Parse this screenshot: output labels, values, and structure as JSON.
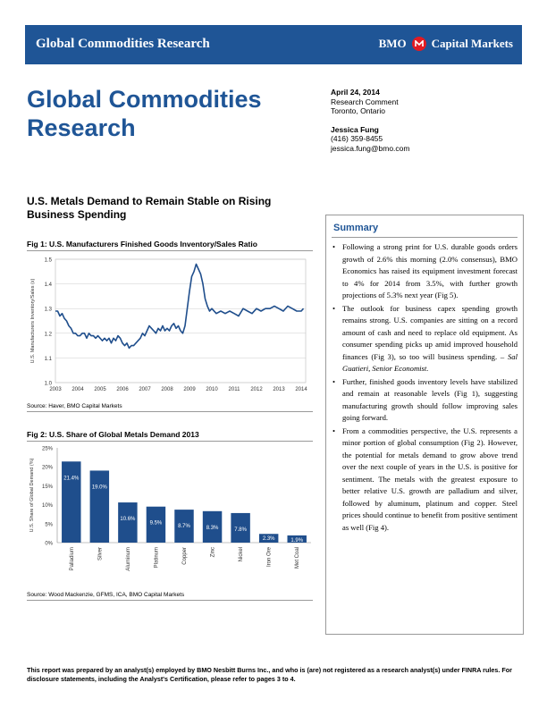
{
  "header": {
    "title": "Global Commodities Research",
    "brand_prefix": "BMO",
    "brand_suffix": "Capital Markets",
    "brand_color": "#1f5596",
    "logo_color": "#e21b23"
  },
  "main_title": "Global Commodities Research",
  "meta": {
    "date": "April 24, 2014",
    "doc_type": "Research Comment",
    "location": "Toronto, Ontario",
    "author_name": "Jessica Fung",
    "author_phone": "(416) 359-8455",
    "author_email": "jessica.fung@bmo.com"
  },
  "headline": "U.S. Metals Demand to Remain Stable on Rising Business Spending",
  "fig1": {
    "title": "Fig 1: U.S. Manufacturers Finished Goods Inventory/Sales Ratio",
    "source": "Source: Haver, BMO Capital Markets"
  },
  "fig2": {
    "title": "Fig 2: U.S. Share of Global Metals Demand 2013",
    "source": "Source: Wood Mackenzie, GFMS, ICA, BMO Capital Markets"
  },
  "chart_data": [
    {
      "type": "line",
      "title": "Fig 1: U.S. Manufacturers Finished Goods Inventory/Sales Ratio",
      "ylabel": "U.S. Manufacturers Inventory/Sales (x)",
      "xlabel": "",
      "ylim": [
        1.0,
        1.5
      ],
      "yticks": [
        "1.0",
        "1.1",
        "1.2",
        "1.3",
        "1.4",
        "1.5"
      ],
      "xlim": [
        2003,
        2014.2
      ],
      "xticks": [
        "2003",
        "2004",
        "2005",
        "2006",
        "2007",
        "2008",
        "2009",
        "2010",
        "2011",
        "2012",
        "2013",
        "2014"
      ],
      "grid": true,
      "color": "#1f4e8c",
      "series": [
        {
          "x": [
            2003.0,
            2003.1,
            2003.2,
            2003.3,
            2003.4,
            2003.5,
            2003.6,
            2003.7,
            2003.8,
            2003.9,
            2004.0,
            2004.1,
            2004.2,
            2004.3,
            2004.4,
            2004.5,
            2004.6,
            2004.7,
            2004.8,
            2004.9,
            2005.0,
            2005.1,
            2005.2,
            2005.3,
            2005.4,
            2005.5,
            2005.6,
            2005.7,
            2005.8,
            2005.9,
            2006.0,
            2006.1,
            2006.2,
            2006.3,
            2006.4,
            2006.5,
            2006.6,
            2006.7,
            2006.8,
            2006.9,
            2007.0,
            2007.1,
            2007.2,
            2007.3,
            2007.4,
            2007.5,
            2007.6,
            2007.7,
            2007.8,
            2007.9,
            2008.0,
            2008.1,
            2008.2,
            2008.3,
            2008.4,
            2008.5,
            2008.6,
            2008.7,
            2008.8,
            2008.9,
            2009.0,
            2009.1,
            2009.2,
            2009.3,
            2009.4,
            2009.5,
            2009.6,
            2009.7,
            2009.8,
            2009.9,
            2010.0,
            2010.2,
            2010.4,
            2010.6,
            2010.8,
            2011.0,
            2011.2,
            2011.4,
            2011.6,
            2011.8,
            2012.0,
            2012.2,
            2012.4,
            2012.6,
            2012.8,
            2013.0,
            2013.2,
            2013.4,
            2013.6,
            2013.8,
            2014.0,
            2014.1
          ],
          "y": [
            1.29,
            1.29,
            1.27,
            1.28,
            1.26,
            1.25,
            1.23,
            1.22,
            1.2,
            1.2,
            1.19,
            1.19,
            1.2,
            1.2,
            1.18,
            1.2,
            1.19,
            1.19,
            1.18,
            1.19,
            1.18,
            1.17,
            1.18,
            1.17,
            1.18,
            1.16,
            1.18,
            1.17,
            1.19,
            1.18,
            1.16,
            1.15,
            1.16,
            1.14,
            1.15,
            1.15,
            1.16,
            1.17,
            1.18,
            1.2,
            1.19,
            1.21,
            1.23,
            1.22,
            1.21,
            1.2,
            1.22,
            1.21,
            1.23,
            1.21,
            1.22,
            1.21,
            1.23,
            1.24,
            1.22,
            1.23,
            1.21,
            1.2,
            1.23,
            1.3,
            1.37,
            1.43,
            1.45,
            1.48,
            1.46,
            1.44,
            1.4,
            1.34,
            1.31,
            1.29,
            1.3,
            1.28,
            1.29,
            1.28,
            1.29,
            1.28,
            1.27,
            1.3,
            1.29,
            1.28,
            1.3,
            1.29,
            1.3,
            1.3,
            1.31,
            1.3,
            1.29,
            1.31,
            1.3,
            1.29,
            1.29,
            1.3
          ]
        }
      ]
    },
    {
      "type": "bar",
      "title": "Fig 2: U.S. Share of Global Metals Demand 2013",
      "ylabel": "U.S. Share of Global Demand (%)",
      "xlabel": "",
      "ylim": [
        0,
        25
      ],
      "yticks": [
        "0%",
        "5%",
        "10%",
        "15%",
        "20%",
        "25%"
      ],
      "grid": false,
      "color": "#1f4e8c",
      "categories": [
        "Palladium",
        "Silver",
        "Aluminum",
        "Platinum",
        "Copper",
        "Zinc",
        "Nickel",
        "Iron Ore",
        "Met Coal"
      ],
      "values": [
        21.4,
        19.0,
        10.6,
        9.5,
        8.7,
        8.3,
        7.8,
        2.3,
        1.9
      ],
      "data_labels": [
        "21.4%",
        "19.0%",
        "10.6%",
        "9.5%",
        "8.7%",
        "8.3%",
        "7.8%",
        "2.3%",
        "1.9%"
      ]
    }
  ],
  "summary": {
    "title": "Summary",
    "bullets": [
      "Following a strong print for U.S. durable goods orders growth of 2.6% this morning (2.0% consensus), BMO Economics has raised its equipment investment forecast to 4% for 2014 from 3.5%, with further growth projections of 5.3% next year (Fig 5).",
      "The outlook for business capex spending growth remains strong. U.S. companies are sitting on a record amount of cash and need to replace old equipment. As consumer spending picks up amid improved household finances (Fig 3), so too will business spending.",
      "Further, finished goods inventory levels have stabilized and remain at reasonable levels (Fig 1), suggesting manufacturing growth should follow improving sales going forward.",
      "From a commodities perspective, the U.S. represents a minor portion of global consumption (Fig 2). However, the potential for metals demand to grow above trend over the next couple of years in the U.S. is positive for sentiment. The metals with the greatest exposure to better relative U.S. growth are palladium and silver, followed by aluminum, platinum and copper. Steel prices should continue to benefit from positive sentiment as well (Fig 4)."
    ],
    "quote": "– Sal Guatieri, Senior Economist."
  },
  "footer": "This report was prepared by an analyst(s) employed by BMO Nesbitt Burns Inc., and who is (are) not registered as a research analyst(s) under FINRA rules. For disclosure statements, including the Analyst's Certification, please refer to pages 3 to 4."
}
